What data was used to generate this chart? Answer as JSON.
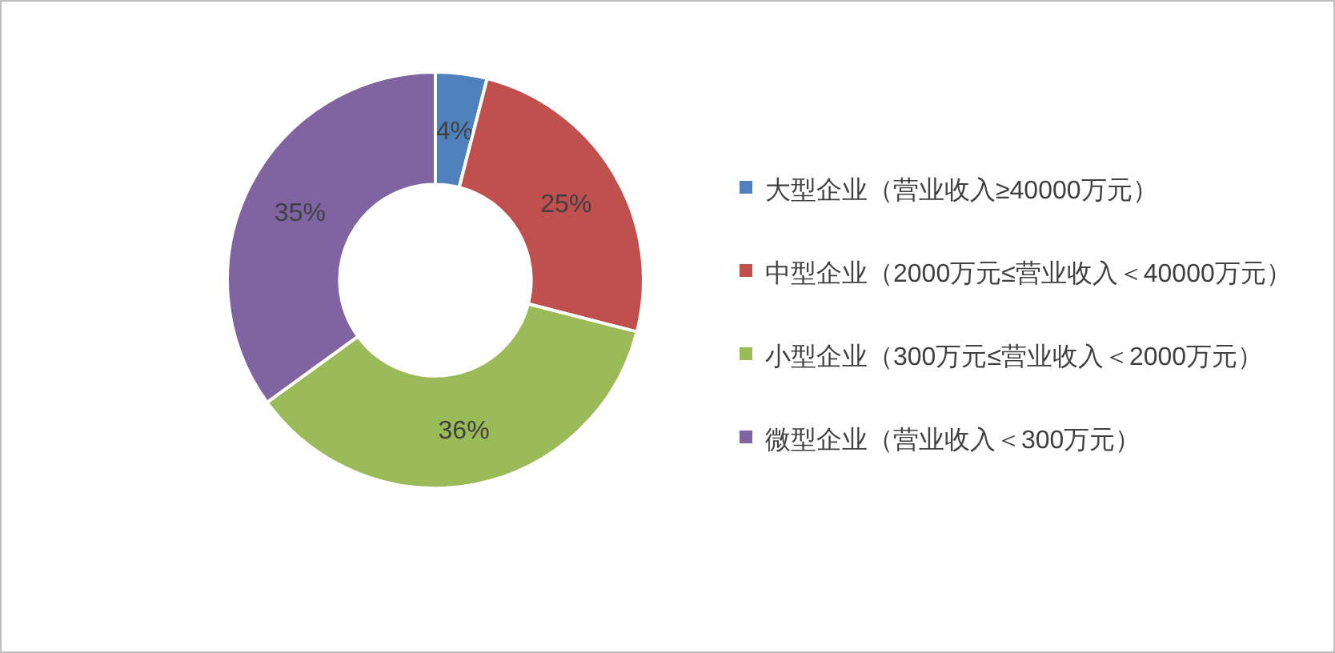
{
  "chart_data": {
    "type": "donut",
    "categories": [
      "大型企业（营业收入≥40000万元）",
      "中型企业（2000万元≤营业收入＜40000万元）",
      "小型企业（300万元≤营业收入＜2000万元）",
      "微型企业（营业收入＜300万元）"
    ],
    "values": [
      4,
      25,
      36,
      35
    ],
    "colors": [
      "#4f81bd",
      "#c0504d",
      "#9bbb59",
      "#8064a2"
    ],
    "value_labels": [
      "4%",
      "25%",
      "36%",
      "35%"
    ],
    "legend": "right"
  }
}
